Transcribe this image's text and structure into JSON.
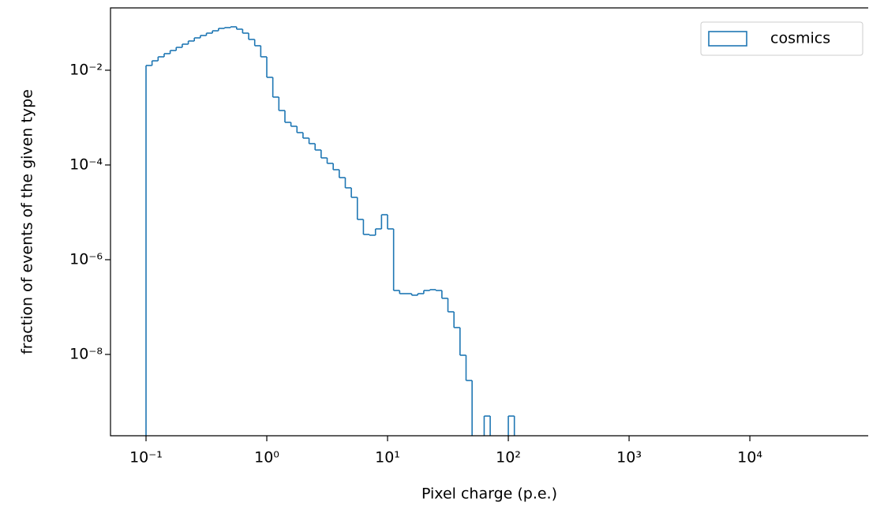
{
  "chart_data": {
    "type": "histogram",
    "histtype": "step",
    "xlabel": "Pixel charge (p.e.)",
    "ylabel": "fraction of events of the given type",
    "xscale": "log",
    "yscale": "log",
    "xlim": [
      0.0508,
      95500
    ],
    "ylim": [
      1.92e-10,
      0.207
    ],
    "xticks": [
      {
        "value": 0.1,
        "label": "10⁻¹"
      },
      {
        "value": 1,
        "label": "10⁰"
      },
      {
        "value": 10,
        "label": "10¹"
      },
      {
        "value": 100,
        "label": "10²"
      },
      {
        "value": 1000,
        "label": "10³"
      },
      {
        "value": 10000,
        "label": "10⁴"
      }
    ],
    "yticks": [
      {
        "value": 0.01,
        "label": "10⁻²"
      },
      {
        "value": 0.0001,
        "label": "10⁻⁴"
      },
      {
        "value": 1e-06,
        "label": "10⁻⁶"
      },
      {
        "value": 1e-08,
        "label": "10⁻⁸"
      }
    ],
    "legend": "upper right",
    "bins": [
      0.1,
      0.1122,
      0.1259,
      0.1413,
      0.1585,
      0.1778,
      0.1995,
      0.2239,
      0.2512,
      0.2818,
      0.3162,
      0.3548,
      0.3981,
      0.4467,
      0.5012,
      0.5623,
      0.631,
      0.7079,
      0.7943,
      0.8913,
      1,
      1.122,
      1.259,
      1.413,
      1.585,
      1.778,
      1.995,
      2.239,
      2.512,
      2.818,
      3.162,
      3.548,
      3.981,
      4.467,
      5.012,
      5.623,
      6.31,
      7.079,
      7.943,
      8.913,
      10,
      11.22,
      12.59,
      14.13,
      15.85,
      17.78,
      19.95,
      22.39,
      25.12,
      28.18,
      31.62,
      35.48,
      39.81,
      44.67,
      50.12,
      56.23,
      63.1,
      70.79,
      79.43,
      89.13,
      100,
      112.2
    ],
    "series": [
      {
        "name": "cosmics",
        "color": "#1f77b4",
        "values": [
          0.0126,
          0.0158,
          0.0192,
          0.0224,
          0.0261,
          0.0304,
          0.0355,
          0.0414,
          0.0482,
          0.0541,
          0.0607,
          0.068,
          0.0764,
          0.0794,
          0.0825,
          0.0736,
          0.0607,
          0.0447,
          0.0329,
          0.0192,
          0.00708,
          0.00271,
          0.00141,
          0.000794,
          0.000656,
          0.000482,
          0.000369,
          0.000282,
          0.000207,
          0.000141,
          0.000108,
          7.94e-05,
          5.41e-05,
          3.29e-05,
          2.07e-05,
          7.08e-06,
          3.41e-06,
          3.29e-06,
          4.47e-06,
          8.91e-06,
          4.47e-06,
          2.24e-07,
          1.92e-07,
          1.92e-07,
          1.78e-07,
          1.92e-07,
          2.24e-07,
          2.33e-07,
          2.24e-07,
          1.53e-07,
          7.94e-08,
          3.69e-08,
          9.62e-09,
          2.82e-09,
          0,
          0,
          5e-10,
          0,
          0,
          0,
          5e-10
        ]
      }
    ]
  }
}
